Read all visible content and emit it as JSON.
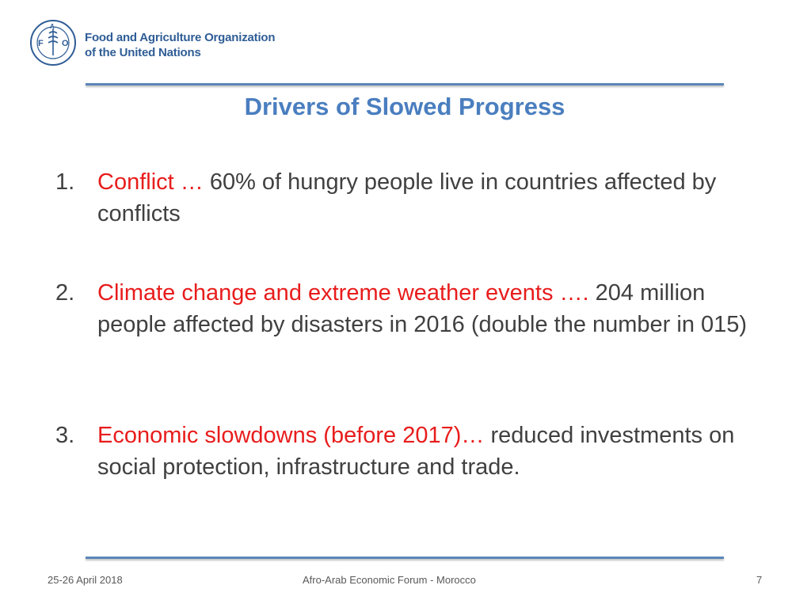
{
  "logo": {
    "line1": "Food and Agriculture Organization",
    "line2": "of the United Nations",
    "emblem_letters": "F A O",
    "emblem_motto": "FIAT PANIS"
  },
  "slide": {
    "title": "Drivers of Slowed Progress",
    "items": [
      {
        "num": "1.",
        "lead": "Conflict …",
        "rest": " 60% of hungry people live in countries affected by conflicts"
      },
      {
        "num": "2.",
        "lead": "Climate change and extreme weather events ….",
        "rest": " 204 million people affected by disasters in 2016 (double the number in 015)"
      },
      {
        "num": "3.",
        "lead": "Economic slowdowns (before 2017)…",
        "rest": " reduced investments on social protection, infrastructure and trade."
      }
    ]
  },
  "footer": {
    "date": "25-26 April 2018",
    "event": "Afro-Arab Economic Forum - Morocco",
    "page": "7"
  },
  "colors": {
    "accent": "#4a7ebf",
    "highlight": "#e81c1c",
    "rule": "#5b86b8"
  }
}
